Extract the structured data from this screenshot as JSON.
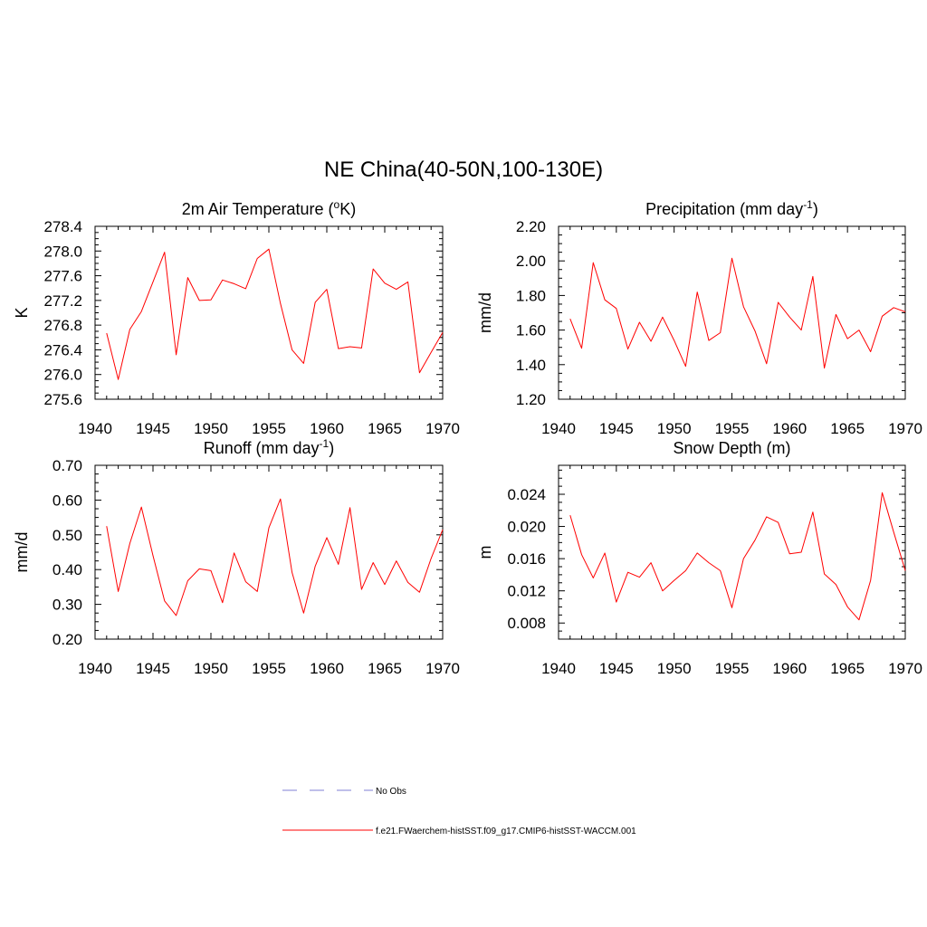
{
  "figure": {
    "title": "NE China(40-50N,100-130E)"
  },
  "legend": {
    "entries": [
      {
        "label": "No Obs",
        "style": "dashed",
        "color": "#9999dd"
      },
      {
        "label": "f.e21.FWaerchem-histSST.f09_g17.CMIP6-histSST-WACCM.001",
        "style": "solid",
        "color": "#ff0000"
      }
    ]
  },
  "chart_data": [
    {
      "type": "line",
      "title": "2m Air Temperature (oK)",
      "title_parts": [
        "2m Air Temperature (",
        "o",
        "K)"
      ],
      "ylabel": "K",
      "xlim": [
        1940,
        1970
      ],
      "ylim": [
        275.6,
        278.4
      ],
      "xticks": [
        "1940",
        "1945",
        "1950",
        "1955",
        "1960",
        "1965",
        "1970"
      ],
      "yticks": [
        "275.6",
        "276.0",
        "276.4",
        "276.8",
        "277.2",
        "277.6",
        "278.0",
        "278.4"
      ],
      "series": [
        {
          "color": "#ff0000",
          "x": [
            1941,
            1942,
            1943,
            1944,
            1945,
            1946,
            1947,
            1948,
            1949,
            1950,
            1951,
            1952,
            1953,
            1954,
            1955,
            1956,
            1957,
            1958,
            1959,
            1960,
            1961,
            1962,
            1963,
            1964,
            1965,
            1966,
            1967,
            1968,
            1969,
            1970
          ],
          "values": [
            276.67,
            275.92,
            276.73,
            277.02,
            277.5,
            277.98,
            276.32,
            277.57,
            277.2,
            277.21,
            277.53,
            277.47,
            277.39,
            277.88,
            278.03,
            277.15,
            276.4,
            276.18,
            277.17,
            277.38,
            276.42,
            276.45,
            276.43,
            277.71,
            277.48,
            277.38,
            277.5,
            276.03,
            276.36,
            276.68
          ]
        }
      ]
    },
    {
      "type": "line",
      "title": "Precipitation (mm day-1)",
      "title_parts": [
        "Precipitation (mm day",
        "-1",
        ")"
      ],
      "ylabel": "mm/d",
      "xlim": [
        1940,
        1970
      ],
      "ylim": [
        1.2,
        2.2
      ],
      "xticks": [
        "1940",
        "1945",
        "1950",
        "1955",
        "1960",
        "1965",
        "1970"
      ],
      "yticks": [
        "1.20",
        "1.40",
        "1.60",
        "1.80",
        "2.00",
        "2.20"
      ],
      "series": [
        {
          "color": "#ff0000",
          "x": [
            1941,
            1942,
            1943,
            1944,
            1945,
            1946,
            1947,
            1948,
            1949,
            1950,
            1951,
            1952,
            1953,
            1954,
            1955,
            1956,
            1957,
            1958,
            1959,
            1960,
            1961,
            1962,
            1963,
            1964,
            1965,
            1966,
            1967,
            1968,
            1969,
            1970
          ],
          "values": [
            1.665,
            1.495,
            1.99,
            1.775,
            1.725,
            1.49,
            1.645,
            1.535,
            1.675,
            1.54,
            1.39,
            1.82,
            1.54,
            1.585,
            2.015,
            1.735,
            1.595,
            1.405,
            1.76,
            1.675,
            1.6,
            1.91,
            1.38,
            1.69,
            1.55,
            1.6,
            1.475,
            1.68,
            1.73,
            1.705
          ]
        }
      ]
    },
    {
      "type": "line",
      "title": "Runoff (mm day-1)",
      "title_parts": [
        "Runoff (mm day",
        "-1",
        ")"
      ],
      "ylabel": "mm/d",
      "xlim": [
        1940,
        1970
      ],
      "ylim": [
        0.2,
        0.7
      ],
      "xticks": [
        "1940",
        "1945",
        "1950",
        "1955",
        "1960",
        "1965",
        "1970"
      ],
      "yticks": [
        "0.20",
        "0.30",
        "0.40",
        "0.50",
        "0.60",
        "0.70"
      ],
      "series": [
        {
          "color": "#ff0000",
          "x": [
            1941,
            1942,
            1943,
            1944,
            1945,
            1946,
            1947,
            1948,
            1949,
            1950,
            1951,
            1952,
            1953,
            1954,
            1955,
            1956,
            1957,
            1958,
            1959,
            1960,
            1961,
            1962,
            1963,
            1964,
            1965,
            1966,
            1967,
            1968,
            1969,
            1970
          ],
          "values": [
            0.525,
            0.337,
            0.475,
            0.58,
            0.44,
            0.31,
            0.268,
            0.368,
            0.402,
            0.397,
            0.305,
            0.448,
            0.365,
            0.337,
            0.52,
            0.603,
            0.392,
            0.275,
            0.41,
            0.492,
            0.415,
            0.578,
            0.343,
            0.42,
            0.357,
            0.425,
            0.363,
            0.335,
            0.432,
            0.515
          ]
        }
      ]
    },
    {
      "type": "line",
      "title": "Snow Depth (m)",
      "title_parts": [
        "Snow Depth (m)"
      ],
      "ylabel": "m",
      "xlim": [
        1940,
        1970
      ],
      "ylim": [
        0.006,
        0.0276
      ],
      "xticks": [
        "1940",
        "1945",
        "1950",
        "1955",
        "1960",
        "1965",
        "1970"
      ],
      "yticks": [
        "0.008",
        "0.012",
        "0.016",
        "0.020",
        "0.024"
      ],
      "ytick_values": [
        0.008,
        0.012,
        0.016,
        0.02,
        0.024
      ],
      "series": [
        {
          "color": "#ff0000",
          "x": [
            1941,
            1942,
            1943,
            1944,
            1945,
            1946,
            1947,
            1948,
            1949,
            1950,
            1951,
            1952,
            1953,
            1954,
            1955,
            1956,
            1957,
            1958,
            1959,
            1960,
            1961,
            1962,
            1963,
            1964,
            1965,
            1966,
            1967,
            1968,
            1969,
            1970
          ],
          "values": [
            0.0214,
            0.0165,
            0.0136,
            0.0167,
            0.0106,
            0.0143,
            0.0137,
            0.0155,
            0.012,
            0.0133,
            0.0145,
            0.0167,
            0.0155,
            0.0145,
            0.0099,
            0.016,
            0.0183,
            0.0212,
            0.0205,
            0.0166,
            0.0168,
            0.0218,
            0.0141,
            0.0128,
            0.01,
            0.0084,
            0.0133,
            0.0242,
            0.0193,
            0.0145
          ]
        }
      ]
    }
  ]
}
